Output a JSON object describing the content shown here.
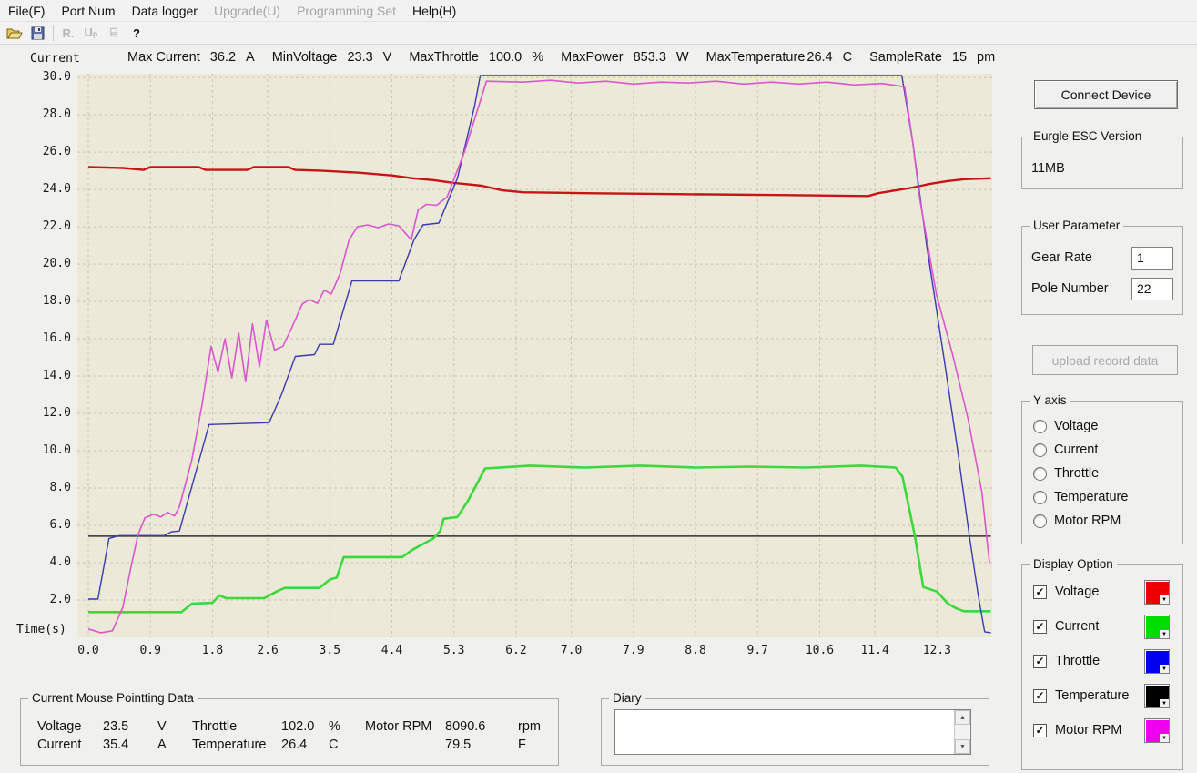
{
  "menu": {
    "items": [
      {
        "label": "File(F)",
        "enabled": true
      },
      {
        "label": "Port Num",
        "enabled": true
      },
      {
        "label": "Data logger",
        "enabled": true
      },
      {
        "label": "Upgrade(U)",
        "enabled": false
      },
      {
        "label": "Programming Set",
        "enabled": false
      },
      {
        "label": "Help(H)",
        "enabled": true
      }
    ]
  },
  "toolbar": {
    "buttons": [
      {
        "name": "open-file-icon",
        "enabled": true
      },
      {
        "name": "save-icon",
        "enabled": true
      },
      {
        "name": "separator",
        "enabled": false
      },
      {
        "name": "record-icon",
        "glyph": "R.",
        "enabled": false
      },
      {
        "name": "upload-icon",
        "glyph": "Uₚ",
        "enabled": false
      },
      {
        "name": "program-icon",
        "glyph": "⌸",
        "enabled": false
      },
      {
        "name": "help-icon",
        "glyph": "?",
        "enabled": true
      }
    ]
  },
  "stats": {
    "items": [
      {
        "label": "Max Current",
        "value": "36.2",
        "unit": "A"
      },
      {
        "label": "MinVoltage",
        "value": "23.3",
        "unit": "V"
      },
      {
        "label": "MaxThrottle",
        "value": "100.0",
        "unit": "%"
      },
      {
        "label": "MaxPower",
        "value": "853.3",
        "unit": "W"
      },
      {
        "label": "MaxTemperature",
        "value": "26.4",
        "unit": "C",
        "tight": true
      },
      {
        "label": "SampleRate",
        "value": "15",
        "unit": "pm"
      }
    ]
  },
  "chart_data": {
    "type": "line",
    "ylabel": "Current",
    "xlabel": "Time(s)",
    "plot_bg": "#ECE9D8",
    "grid_color": "#C9C6B2",
    "x_range": [
      0,
      13.1
    ],
    "y_range": [
      0,
      30.2
    ],
    "x_ticks": [
      {
        "t": 0.0,
        "label": "0.0"
      },
      {
        "t": 0.9,
        "label": "0.9"
      },
      {
        "t": 1.8,
        "label": "1.8"
      },
      {
        "t": 2.6,
        "label": "2.6"
      },
      {
        "t": 3.5,
        "label": "3.5"
      },
      {
        "t": 4.4,
        "label": "4.4"
      },
      {
        "t": 5.3,
        "label": "5.3"
      },
      {
        "t": 6.2,
        "label": "6.2"
      },
      {
        "t": 7.0,
        "label": "7.0"
      },
      {
        "t": 7.9,
        "label": "7.9"
      },
      {
        "t": 8.8,
        "label": "8.8"
      },
      {
        "t": 9.7,
        "label": "9.7"
      },
      {
        "t": 10.6,
        "label": "10.6"
      },
      {
        "t": 11.4,
        "label": "11.4"
      },
      {
        "t": 12.3,
        "label": "12.3"
      }
    ],
    "y_ticks": [
      30,
      28,
      26,
      24,
      22,
      20,
      18,
      16,
      14,
      12,
      10,
      8,
      6,
      4,
      2
    ],
    "series": [
      {
        "name": "Temperature",
        "color": "#2E2E2E",
        "width": 1.5,
        "points": [
          [
            0,
            5.42
          ],
          [
            13.08,
            5.42
          ]
        ]
      },
      {
        "name": "Voltage",
        "color": "#C81414",
        "width": 2.4,
        "points": [
          [
            0,
            25.2
          ],
          [
            0.5,
            25.15
          ],
          [
            0.8,
            25.05
          ],
          [
            0.9,
            25.2
          ],
          [
            1.6,
            25.2
          ],
          [
            1.7,
            25.05
          ],
          [
            2.3,
            25.05
          ],
          [
            2.4,
            25.2
          ],
          [
            2.9,
            25.2
          ],
          [
            3.0,
            25.05
          ],
          [
            3.4,
            25.0
          ],
          [
            3.9,
            24.9
          ],
          [
            4.4,
            24.75
          ],
          [
            4.7,
            24.6
          ],
          [
            5.0,
            24.5
          ],
          [
            5.3,
            24.35
          ],
          [
            5.7,
            24.2
          ],
          [
            6.0,
            23.95
          ],
          [
            6.3,
            23.85
          ],
          [
            7.2,
            23.8
          ],
          [
            8.5,
            23.75
          ],
          [
            10.0,
            23.7
          ],
          [
            11.3,
            23.65
          ],
          [
            11.45,
            23.8
          ],
          [
            11.7,
            23.95
          ],
          [
            11.95,
            24.1
          ],
          [
            12.2,
            24.3
          ],
          [
            12.45,
            24.45
          ],
          [
            12.7,
            24.55
          ],
          [
            13.08,
            24.6
          ]
        ]
      },
      {
        "name": "Current",
        "color": "#3CD83C",
        "width": 2.6,
        "points": [
          [
            0,
            1.35
          ],
          [
            1.35,
            1.35
          ],
          [
            1.5,
            1.8
          ],
          [
            1.8,
            1.85
          ],
          [
            1.9,
            2.25
          ],
          [
            2.0,
            2.1
          ],
          [
            2.55,
            2.1
          ],
          [
            2.75,
            2.5
          ],
          [
            2.85,
            2.65
          ],
          [
            3.35,
            2.65
          ],
          [
            3.5,
            3.1
          ],
          [
            3.6,
            3.2
          ],
          [
            3.7,
            4.3
          ],
          [
            4.55,
            4.3
          ],
          [
            4.7,
            4.7
          ],
          [
            5.0,
            5.3
          ],
          [
            5.1,
            5.7
          ],
          [
            5.15,
            6.35
          ],
          [
            5.35,
            6.45
          ],
          [
            5.5,
            7.3
          ],
          [
            5.75,
            9.05
          ],
          [
            6.4,
            9.2
          ],
          [
            7.2,
            9.1
          ],
          [
            8.0,
            9.2
          ],
          [
            8.8,
            9.1
          ],
          [
            9.6,
            9.15
          ],
          [
            10.4,
            9.1
          ],
          [
            11.2,
            9.2
          ],
          [
            11.7,
            9.1
          ],
          [
            11.8,
            8.6
          ],
          [
            11.98,
            5.42
          ],
          [
            12.1,
            2.7
          ],
          [
            12.3,
            2.45
          ],
          [
            12.46,
            1.8
          ],
          [
            12.58,
            1.55
          ],
          [
            12.69,
            1.4
          ],
          [
            13.08,
            1.4
          ]
        ]
      },
      {
        "name": "Throttle",
        "color": "#3A3AB0",
        "width": 1.4,
        "points": [
          [
            0,
            2.05
          ],
          [
            0.14,
            2.05
          ],
          [
            0.3,
            5.3
          ],
          [
            0.45,
            5.45
          ],
          [
            1.1,
            5.45
          ],
          [
            1.2,
            5.65
          ],
          [
            1.32,
            5.7
          ],
          [
            1.75,
            11.4
          ],
          [
            2.62,
            11.5
          ],
          [
            2.8,
            13.0
          ],
          [
            3.0,
            15.05
          ],
          [
            3.28,
            15.15
          ],
          [
            3.35,
            15.7
          ],
          [
            3.55,
            15.7
          ],
          [
            3.82,
            19.1
          ],
          [
            4.5,
            19.1
          ],
          [
            4.72,
            21.3
          ],
          [
            4.85,
            22.1
          ],
          [
            5.08,
            22.2
          ],
          [
            5.35,
            24.6
          ],
          [
            5.6,
            28.5
          ],
          [
            5.68,
            30.1
          ],
          [
            11.79,
            30.1
          ],
          [
            11.95,
            26.5
          ],
          [
            12.15,
            21.0
          ],
          [
            12.4,
            15.0
          ],
          [
            12.6,
            10.0
          ],
          [
            12.77,
            5.4
          ],
          [
            12.9,
            2.2
          ],
          [
            12.99,
            0.3
          ],
          [
            13.08,
            0.25
          ]
        ]
      },
      {
        "name": "Motor RPM",
        "color": "#DB55CE",
        "width": 1.6,
        "points": [
          [
            0,
            0.45
          ],
          [
            0.18,
            0.25
          ],
          [
            0.35,
            0.35
          ],
          [
            0.5,
            1.6
          ],
          [
            0.62,
            3.8
          ],
          [
            0.72,
            5.5
          ],
          [
            0.82,
            6.4
          ],
          [
            0.95,
            6.6
          ],
          [
            1.05,
            6.45
          ],
          [
            1.15,
            6.7
          ],
          [
            1.25,
            6.5
          ],
          [
            1.32,
            7.0
          ],
          [
            1.5,
            9.5
          ],
          [
            1.65,
            12.5
          ],
          [
            1.78,
            15.6
          ],
          [
            1.88,
            14.2
          ],
          [
            1.98,
            16.0
          ],
          [
            2.08,
            13.9
          ],
          [
            2.18,
            16.3
          ],
          [
            2.28,
            13.7
          ],
          [
            2.38,
            16.8
          ],
          [
            2.48,
            14.5
          ],
          [
            2.58,
            17.0
          ],
          [
            2.7,
            15.4
          ],
          [
            2.82,
            15.6
          ],
          [
            2.95,
            16.6
          ],
          [
            3.1,
            17.85
          ],
          [
            3.2,
            18.1
          ],
          [
            3.32,
            17.9
          ],
          [
            3.42,
            18.6
          ],
          [
            3.52,
            18.4
          ],
          [
            3.65,
            19.5
          ],
          [
            3.78,
            21.3
          ],
          [
            3.9,
            22.0
          ],
          [
            4.05,
            22.1
          ],
          [
            4.2,
            21.95
          ],
          [
            4.35,
            22.15
          ],
          [
            4.5,
            22.05
          ],
          [
            4.68,
            21.3
          ],
          [
            4.78,
            22.9
          ],
          [
            4.9,
            23.2
          ],
          [
            5.05,
            23.15
          ],
          [
            5.2,
            23.6
          ],
          [
            5.45,
            26.0
          ],
          [
            5.77,
            29.8
          ],
          [
            6.3,
            29.75
          ],
          [
            6.7,
            29.85
          ],
          [
            7.1,
            29.7
          ],
          [
            7.5,
            29.8
          ],
          [
            7.9,
            29.65
          ],
          [
            8.3,
            29.75
          ],
          [
            8.7,
            29.7
          ],
          [
            9.1,
            29.8
          ],
          [
            9.5,
            29.65
          ],
          [
            9.9,
            29.75
          ],
          [
            10.3,
            29.65
          ],
          [
            10.7,
            29.75
          ],
          [
            11.1,
            29.6
          ],
          [
            11.5,
            29.68
          ],
          [
            11.83,
            29.5
          ],
          [
            11.95,
            26.5
          ],
          [
            12.05,
            23.5
          ],
          [
            12.29,
            18.4
          ],
          [
            12.53,
            15.1
          ],
          [
            12.75,
            11.7
          ],
          [
            12.95,
            7.8
          ],
          [
            13.06,
            4.0
          ]
        ]
      }
    ]
  },
  "right_panel": {
    "connect_label": "Connect Device",
    "version": {
      "title": "Eurgle ESC Version",
      "value": "11MB"
    },
    "user_parameter": {
      "title": "User Parameter",
      "fields": [
        {
          "label": "Gear Rate",
          "value": "1"
        },
        {
          "label": "Pole Number",
          "value": "22"
        }
      ]
    },
    "upload_label": "upload record data",
    "y_axis": {
      "title": "Y axis",
      "options": [
        {
          "label": "Voltage",
          "selected": false
        },
        {
          "label": "Current",
          "selected": false
        },
        {
          "label": "Throttle",
          "selected": false
        },
        {
          "label": "Temperature",
          "selected": false
        },
        {
          "label": "Motor RPM",
          "selected": false
        }
      ]
    },
    "display_option": {
      "title": "Display Option",
      "items": [
        {
          "label": "Voltage",
          "checked": true,
          "color": "#EE0000"
        },
        {
          "label": "Current",
          "checked": true,
          "color": "#00DD00"
        },
        {
          "label": "Throttle",
          "checked": true,
          "color": "#0000EE"
        },
        {
          "label": "Temperature",
          "checked": true,
          "color": "#000000"
        },
        {
          "label": "Motor RPM",
          "checked": true,
          "color": "#EE00EE"
        }
      ]
    }
  },
  "bottom": {
    "mouse_data": {
      "title": "Current Mouse Pointting Data",
      "rows": [
        [
          "Voltage",
          "23.5",
          "V",
          "Throttle",
          "102.0",
          "%",
          "Motor RPM",
          "8090.6",
          "rpm"
        ],
        [
          "Current",
          "35.4",
          "A",
          "Temperature",
          "26.4",
          "C",
          "",
          "79.5",
          "F"
        ]
      ]
    },
    "diary": {
      "title": "Diary",
      "text": ""
    }
  }
}
